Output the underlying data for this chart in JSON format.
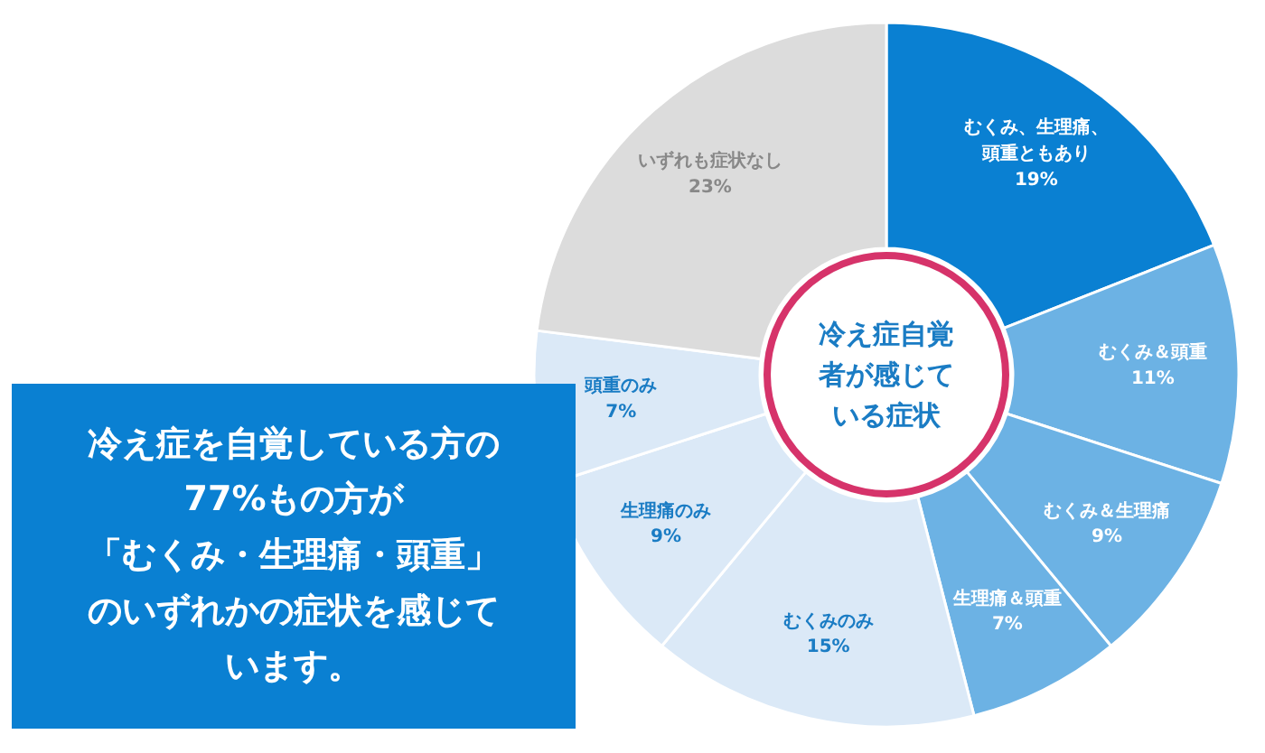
{
  "chart_data": {
    "type": "donut",
    "title": "冷え症自覚者が感じている症状",
    "categories": [
      "むくみ、生理痛、頭重ともあり",
      "むくみ＆頭重",
      "むくみ＆生理痛",
      "生理痛＆頭重",
      "むくみのみ",
      "生理痛のみ",
      "頭重のみ",
      "いずれも症状なし"
    ],
    "values": [
      19,
      11,
      9,
      7,
      15,
      9,
      7,
      23
    ],
    "value_labels": [
      "19%",
      "11%",
      "9%",
      "7%",
      "15%",
      "9%",
      "7%",
      "23%"
    ],
    "colors": [
      "#0a80d2",
      "#6cb2e4",
      "#6cb2e4",
      "#6cb2e4",
      "#dbe9f7",
      "#dbe9f7",
      "#dbe9f7",
      "#dcdcdc"
    ],
    "annotations": [
      "冷え症を自覚している方の77%もの方が「むくみ・生理痛・頭重」のいずれかの症状を感じています。"
    ]
  }
}
